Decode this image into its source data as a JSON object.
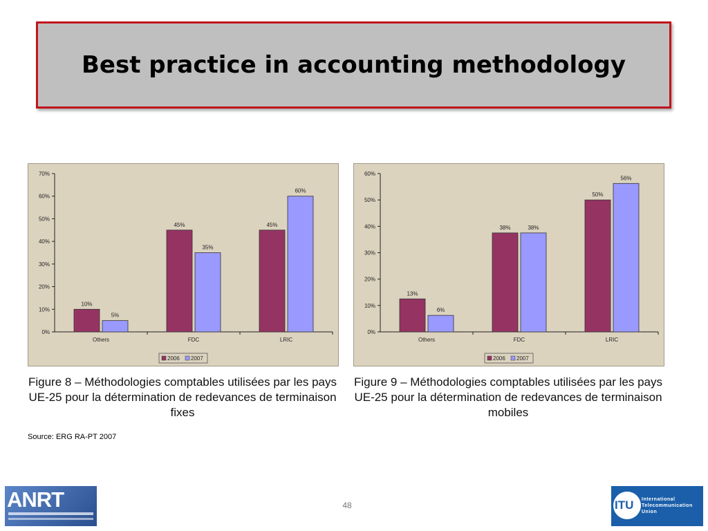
{
  "slide": {
    "title": "Best practice in accounting methodology",
    "source": "Source: ERG RA-PT 2007",
    "page_number": "48",
    "logo_left": {
      "text": "ANRT"
    },
    "logo_right": {
      "short": "ITU",
      "line1": "International",
      "line2": "Telecommunication",
      "line3": "Union"
    }
  },
  "captions": [
    "Figure 8 – Méthodologies comptables utilisées par les pays UE-25 pour la détermination de redevances de terminaison fixes",
    "Figure 9 – Méthodologies comptables utilisées par les pays UE-25 pour la détermination de redevances de terminaison mobiles"
  ],
  "colors": {
    "series_2006": "#953462",
    "series_2007": "#9999ff",
    "panel_bg": "#dcd3bf",
    "title_border": "#c0141c"
  },
  "chart_data": [
    {
      "type": "bar",
      "categories": [
        "Others",
        "FDC",
        "LRIC"
      ],
      "series": [
        {
          "name": "2006",
          "values": [
            10,
            45,
            45
          ],
          "labels": [
            "10%",
            "45%",
            "45%"
          ]
        },
        {
          "name": "2007",
          "values": [
            5,
            35,
            60
          ],
          "labels": [
            "5%",
            "35%",
            "60%"
          ]
        }
      ],
      "ylim": [
        0,
        70
      ],
      "yticks": [
        0,
        10,
        20,
        30,
        40,
        50,
        60,
        70
      ],
      "ytick_labels": [
        "0%",
        "10%",
        "20%",
        "30%",
        "40%",
        "50%",
        "60%",
        "70%"
      ],
      "legend_position": "bottom-center",
      "grid": false
    },
    {
      "type": "bar",
      "categories": [
        "Others",
        "FDC",
        "LRIC"
      ],
      "series": [
        {
          "name": "2006",
          "values": [
            12.5,
            37.5,
            50
          ],
          "labels": [
            "13%",
            "38%",
            "50%"
          ]
        },
        {
          "name": "2007",
          "values": [
            6.25,
            37.5,
            56.25
          ],
          "labels": [
            "6%",
            "38%",
            "56%"
          ]
        }
      ],
      "ylim": [
        0,
        60
      ],
      "yticks": [
        0,
        10,
        20,
        30,
        40,
        50,
        60
      ],
      "ytick_labels": [
        "0%",
        "10%",
        "20%",
        "30%",
        "40%",
        "50%",
        "60%"
      ],
      "legend_position": "bottom-center",
      "grid": false
    }
  ]
}
